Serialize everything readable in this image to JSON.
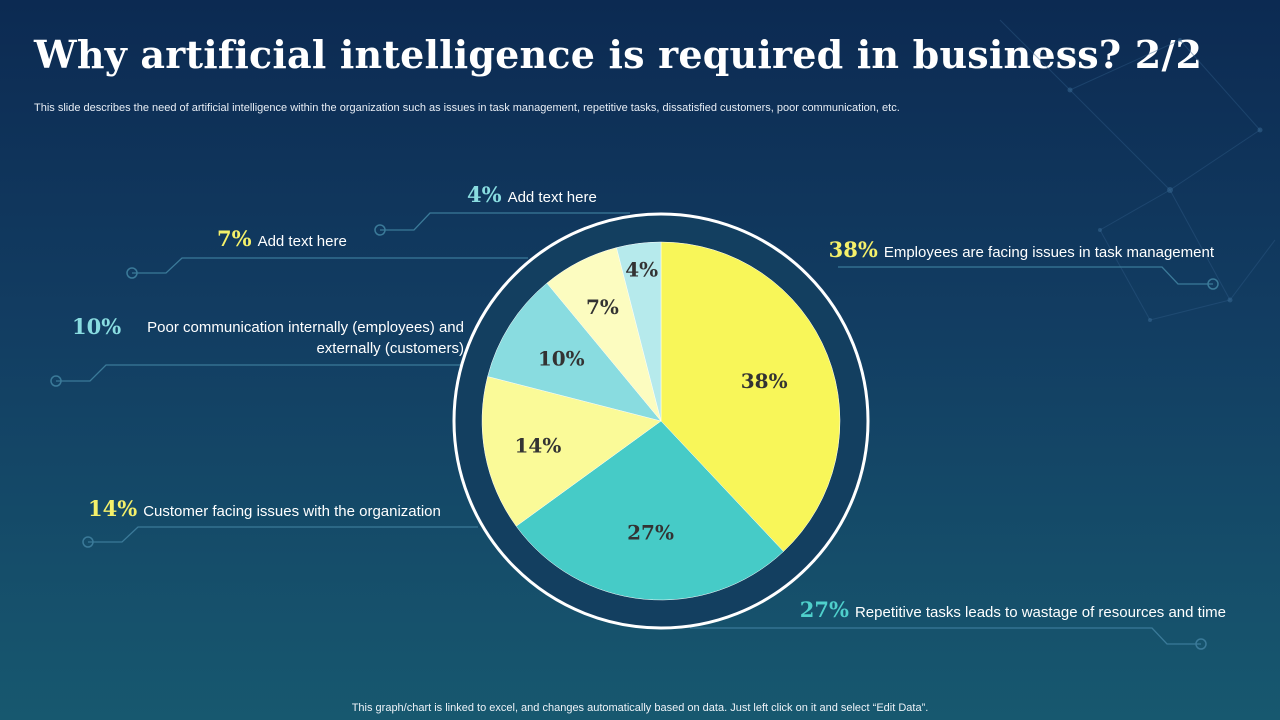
{
  "title": "Why artificial intelligence is required in business? 2/2",
  "subtitle": "This slide describes the need of artificial intelligence within the organization such as issues in task management, repetitive tasks, dissatisfied customers, poor communication, etc.",
  "footer": "This graph/chart is linked to excel,  and changes automatically based on data. Just left click on it and select “Edit Data”.",
  "chart_data": {
    "type": "pie",
    "title": "",
    "slices": [
      {
        "value": 38,
        "label": "38%",
        "callout_pct": "38%",
        "callout_text": "Employees are facing issues in task management",
        "color": "#f8f659",
        "pct_color": "#f4f06a"
      },
      {
        "value": 27,
        "label": "27%",
        "callout_pct": "27%",
        "callout_text": "Repetitive tasks leads to wastage of resources and time",
        "color": "#46cbc7",
        "pct_color": "#4fd0cc"
      },
      {
        "value": 14,
        "label": "14%",
        "callout_pct": "14%",
        "callout_text": "Customer facing issues with the organization",
        "color": "#fafa98",
        "pct_color": "#f4f06a"
      },
      {
        "value": 10,
        "label": "10%",
        "callout_pct": "10%",
        "callout_text": "Poor communication internally  (employees) and externally  (customers)",
        "callout_lines": [
          "Poor communication internally  (employees) and",
          "externally  (customers)"
        ],
        "color": "#89dce0",
        "pct_color": "#89dce0"
      },
      {
        "value": 7,
        "label": "7%",
        "callout_pct": "7%",
        "callout_text": "Add text here",
        "color": "#fcfcc0",
        "pct_color": "#f4f06a"
      },
      {
        "value": 4,
        "label": "4%",
        "callout_pct": "4%",
        "callout_text": "Add text here",
        "color": "#b6eaec",
        "pct_color": "#89dce0"
      }
    ],
    "label_color": "#333333",
    "ring_color": "#ffffff",
    "inner_bg": "#133f60"
  }
}
